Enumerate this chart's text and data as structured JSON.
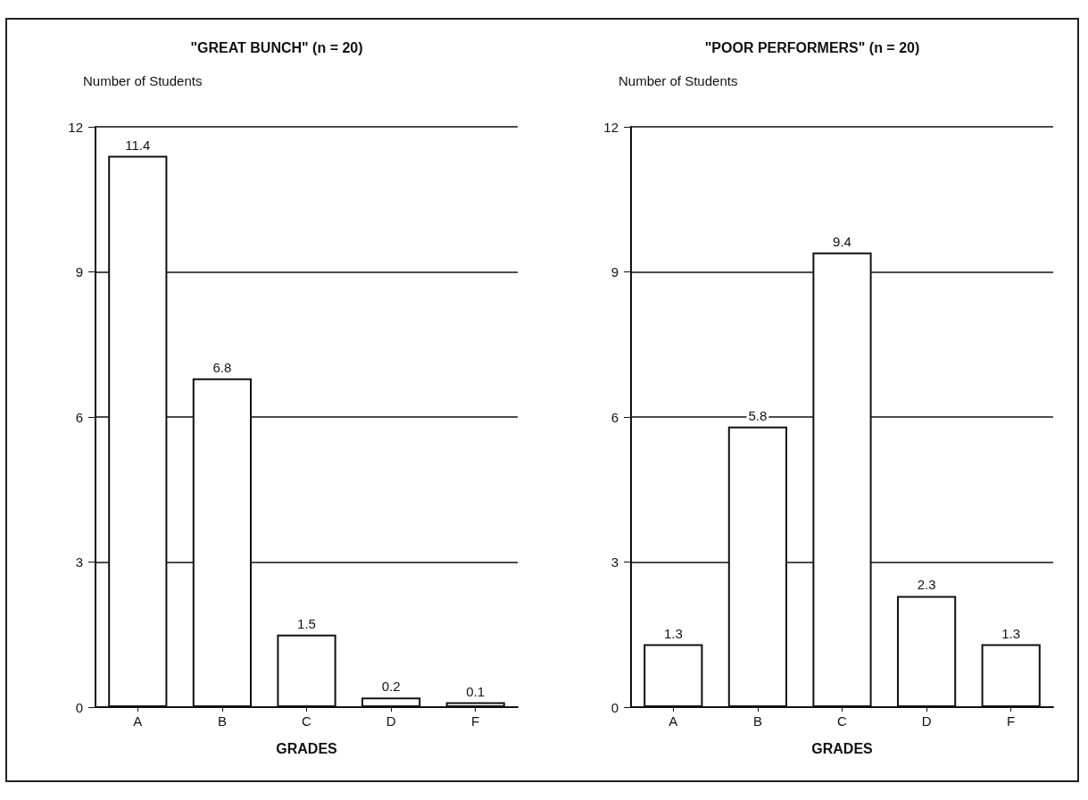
{
  "chart_data": [
    {
      "type": "bar",
      "title": "\"GREAT BUNCH\" (n = 20)",
      "ylabel": "Number of Students",
      "xlabel": "GRADES",
      "categories": [
        "A",
        "B",
        "C",
        "D",
        "F"
      ],
      "values": [
        11.4,
        6.8,
        1.5,
        0.2,
        0.1
      ],
      "color": "#ffffff",
      "ylim": [
        0,
        12
      ],
      "yticks": [
        0,
        3,
        6,
        9,
        12
      ],
      "grid": "y",
      "data_labels": true
    },
    {
      "type": "bar",
      "title": "\"POOR PERFORMERS\" (n = 20)",
      "ylabel": "Number of Students",
      "xlabel": "GRADES",
      "categories": [
        "A",
        "B",
        "C",
        "D",
        "F"
      ],
      "values": [
        1.3,
        5.8,
        9.4,
        2.3,
        1.3
      ],
      "color": "#ffffff",
      "ylim": [
        0,
        12
      ],
      "yticks": [
        0,
        3,
        6,
        9,
        12
      ],
      "grid": "y",
      "data_labels": true
    }
  ]
}
